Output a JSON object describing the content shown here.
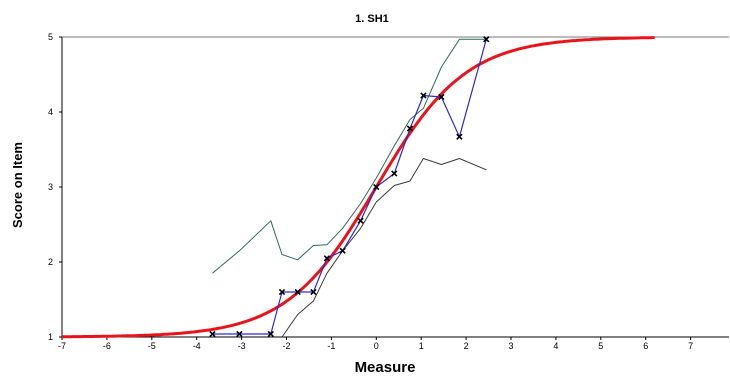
{
  "chart_data": {
    "type": "line",
    "title": "1. SH1",
    "xlabel": "Measure",
    "ylabel": "Score on Item",
    "xlim": [
      -7,
      8
    ],
    "ylim": [
      1,
      5
    ],
    "xticks": [
      -7,
      -6,
      -5,
      -4,
      -3,
      -2,
      -1,
      0,
      1,
      2,
      3,
      4,
      5,
      6,
      7
    ],
    "yticks": [
      1,
      2,
      3,
      4,
      5
    ],
    "grid": false,
    "reference_line_y": 5,
    "colors": {
      "model_curve": "#e8141b",
      "observed": "#2b2bd0",
      "upper_band": "#2f6b55",
      "lower_band": "#3a3a3a",
      "reference": "#777777",
      "marker": "#000000"
    },
    "model_curve": {
      "form": "logistic",
      "min": 1,
      "max": 5,
      "center": 0,
      "slope": 1.0,
      "x_range": [
        -7,
        6.2
      ]
    },
    "series": [
      {
        "role": "observed",
        "x": [
          -3.65,
          -3.05,
          -2.35,
          -2.1,
          -1.75,
          -1.4,
          -1.1,
          -0.75,
          -0.35,
          0.0,
          0.4,
          0.75,
          1.05,
          1.45,
          1.85,
          2.45
        ],
        "y": [
          1.04,
          1.04,
          1.04,
          1.6,
          1.6,
          1.6,
          2.05,
          2.15,
          2.55,
          3.0,
          3.18,
          3.78,
          4.22,
          4.2,
          3.67,
          4.97
        ]
      },
      {
        "role": "upper_band",
        "x": [
          -3.65,
          -3.05,
          -2.35,
          -2.1,
          -1.75,
          -1.4,
          -1.1,
          -0.75,
          -0.35,
          0.0,
          0.4,
          0.75,
          1.05,
          1.45,
          1.85,
          2.45
        ],
        "y": [
          1.85,
          2.15,
          2.55,
          2.1,
          2.03,
          2.22,
          2.23,
          2.45,
          2.78,
          3.12,
          3.55,
          3.9,
          4.05,
          4.6,
          4.97,
          4.97
        ]
      },
      {
        "role": "lower_band",
        "x": [
          -2.1,
          -1.75,
          -1.4,
          -1.1,
          -0.75,
          -0.35,
          0.0,
          0.4,
          0.75,
          1.05,
          1.45,
          1.85,
          2.45
        ],
        "y": [
          1.0,
          1.3,
          1.48,
          1.85,
          2.15,
          2.45,
          2.8,
          3.02,
          3.08,
          3.38,
          3.3,
          3.38,
          3.23
        ]
      }
    ]
  }
}
